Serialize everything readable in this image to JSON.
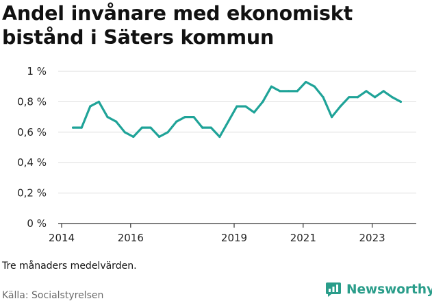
{
  "title": "Andel invånare med ekonomiskt bistånd i Säters kommun",
  "note": "Tre månaders medelvärden.",
  "source": "Källa: Socialstyrelsen",
  "brand": {
    "name": "Newsworthy",
    "icon": "bar-chart-logo-icon"
  },
  "colors": {
    "line": "#1fa398",
    "grid": "#dddddd",
    "brand": "#2a9d8a"
  },
  "chart_data": {
    "type": "line",
    "title": "Andel invånare med ekonomiskt bistånd i Säters kommun",
    "xlabel": "",
    "ylabel": "",
    "ylim": [
      0,
      1
    ],
    "xlim": [
      2014,
      2024.7
    ],
    "y_ticks": [
      {
        "value": 0,
        "label": "0 %"
      },
      {
        "value": 0.2,
        "label": "0,2 %"
      },
      {
        "value": 0.4,
        "label": "0,4 %"
      },
      {
        "value": 0.6,
        "label": "0,6 %"
      },
      {
        "value": 0.8,
        "label": "0,8 %"
      },
      {
        "value": 1,
        "label": "1 %"
      }
    ],
    "x_ticks": [
      {
        "value": 2014,
        "label": "2014"
      },
      {
        "value": 2016,
        "label": "2016"
      },
      {
        "value": 2019,
        "label": "2019"
      },
      {
        "value": 2021,
        "label": "2021"
      },
      {
        "value": 2023,
        "label": "2023"
      }
    ],
    "grid": true,
    "legend": "none",
    "series": [
      {
        "x": [
          2014.33,
          2014.58,
          2014.83,
          2015.08,
          2015.33,
          2015.58,
          2015.83,
          2016.08,
          2016.33,
          2016.58,
          2016.83,
          2017.08,
          2017.33,
          2017.58,
          2017.83,
          2018.08,
          2018.33,
          2018.58,
          2018.83,
          2019.08,
          2019.33,
          2019.58,
          2019.83,
          2020.08,
          2020.33,
          2020.58,
          2020.83,
          2021.08,
          2021.33,
          2021.58,
          2021.83,
          2022.08,
          2022.33,
          2022.58,
          2022.83,
          2023.08,
          2023.33,
          2023.58,
          2023.83
        ],
        "values": [
          0.63,
          0.63,
          0.77,
          0.8,
          0.7,
          0.67,
          0.6,
          0.57,
          0.63,
          0.63,
          0.57,
          0.6,
          0.67,
          0.7,
          0.7,
          0.63,
          0.63,
          0.57,
          0.67,
          0.77,
          0.77,
          0.73,
          0.8,
          0.9,
          0.87,
          0.87,
          0.87,
          0.93,
          0.9,
          0.83,
          0.7,
          0.77,
          0.83,
          0.83,
          0.87,
          0.83,
          0.87,
          0.83,
          0.8
        ]
      }
    ]
  }
}
